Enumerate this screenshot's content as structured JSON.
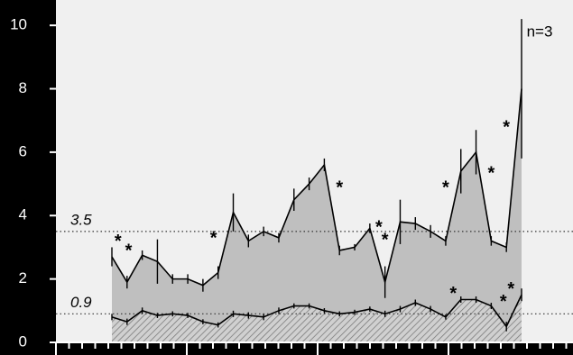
{
  "chart_data": {
    "type": "area",
    "annotation": "n=3",
    "categories": [
      null,
      null,
      null,
      null,
      null,
      null,
      null,
      null,
      null,
      null,
      null,
      null,
      null,
      null,
      null,
      null,
      null,
      null,
      null,
      null,
      null,
      null,
      null,
      null,
      null,
      null,
      null,
      null
    ],
    "series": [
      {
        "color": "#bfbfbf",
        "values": [
          2.7,
          1.9,
          2.75,
          2.55,
          2.0,
          2.0,
          1.8,
          2.2,
          4.1,
          3.2,
          3.5,
          3.3,
          4.5,
          5.0,
          5.6,
          2.9,
          3.0,
          3.6,
          1.9,
          3.8,
          3.75,
          3.5,
          3.2,
          5.4,
          6.0,
          3.2,
          3.0,
          8.0
        ],
        "errors": [
          0.3,
          0.2,
          0.15,
          0.7,
          0.15,
          0.15,
          0.2,
          0.2,
          0.6,
          0.2,
          0.15,
          0.15,
          0.35,
          0.2,
          0.2,
          0.15,
          0.1,
          0.15,
          0.5,
          0.7,
          0.2,
          0.2,
          0.15,
          0.7,
          0.7,
          0.15,
          0.15,
          2.2
        ]
      },
      {
        "color": "#9a9a9a",
        "values": [
          0.8,
          0.65,
          1.0,
          0.85,
          0.9,
          0.85,
          0.65,
          0.55,
          0.9,
          0.85,
          0.8,
          1.0,
          1.15,
          1.15,
          1.0,
          0.9,
          0.95,
          1.05,
          0.9,
          1.05,
          1.25,
          1.05,
          0.8,
          1.35,
          1.35,
          1.15,
          0.5,
          1.5
        ],
        "errors": [
          0.1,
          0.1,
          0.1,
          0.08,
          0.08,
          0.08,
          0.08,
          0.08,
          0.1,
          0.1,
          0.1,
          0.1,
          0.08,
          0.08,
          0.08,
          0.08,
          0.08,
          0.08,
          0.1,
          0.1,
          0.1,
          0.1,
          0.08,
          0.1,
          0.1,
          0.1,
          0.15,
          0.2
        ]
      }
    ],
    "hlines": [
      3.5,
      0.9
    ],
    "asterisks": [
      {
        "text": "*",
        "x": 0.4,
        "y": 3.3
      },
      {
        "text": "*",
        "x": 1.1,
        "y": 3.0
      },
      {
        "text": "*",
        "x": 6.7,
        "y": 3.4
      },
      {
        "text": "*",
        "x": 15,
        "y": 5.0
      },
      {
        "text": "*",
        "x": 17.6,
        "y": 3.75
      },
      {
        "text": "*",
        "x": 18,
        "y": 3.35
      },
      {
        "text": "*",
        "x": 22,
        "y": 5.0
      },
      {
        "text": "*",
        "x": 25,
        "y": 5.45
      },
      {
        "text": "*",
        "x": 26,
        "y": 6.9
      },
      {
        "text": "*",
        "x": 22.5,
        "y": 1.65
      },
      {
        "text": "*",
        "x": 25.8,
        "y": 1.4
      },
      {
        "text": "*",
        "x": 26.3,
        "y": 1.8
      }
    ],
    "ylim": [
      0,
      10.8
    ],
    "yticks": [
      0,
      2,
      4,
      6,
      8,
      10
    ]
  }
}
